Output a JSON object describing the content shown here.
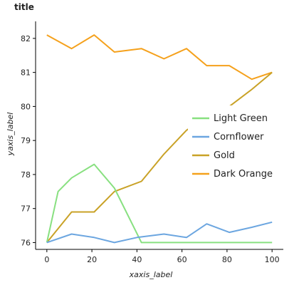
{
  "chart_data": {
    "type": "line",
    "title": "title",
    "xlabel": "xaxis_label",
    "ylabel": "yaxis_label",
    "xlim": [
      -5,
      105
    ],
    "ylim": [
      75.8,
      82.5
    ],
    "x_ticks": [
      0,
      20,
      40,
      60,
      80,
      100
    ],
    "y_ticks": [
      76,
      77,
      78,
      79,
      80,
      81,
      82
    ],
    "grid": false,
    "legend_position": "center-right",
    "series": [
      {
        "name": "Dark Orange",
        "color": "#F5A11C",
        "x": [
          0,
          11,
          21,
          30,
          42,
          52,
          62,
          71,
          81,
          91,
          100
        ],
        "y": [
          82.1,
          81.7,
          82.1,
          81.6,
          81.7,
          81.4,
          81.7,
          81.2,
          81.2,
          80.8,
          81.0
        ]
      },
      {
        "name": "Gold",
        "color": "#C9A227",
        "x": [
          0,
          11,
          21,
          30,
          42,
          52,
          62,
          71,
          81,
          91,
          100
        ],
        "y": [
          76.0,
          76.9,
          76.9,
          77.5,
          77.8,
          78.6,
          79.3,
          79.7,
          80.0,
          80.5,
          81.0
        ]
      },
      {
        "name": "Light Green",
        "color": "#88E080",
        "x": [
          0,
          5,
          11,
          21,
          30,
          42,
          52,
          62,
          71,
          81,
          91,
          100
        ],
        "y": [
          76.0,
          77.5,
          77.9,
          78.3,
          77.6,
          76.0,
          76.0,
          76.0,
          76.0,
          76.0,
          76.0,
          76.0
        ]
      },
      {
        "name": "Cornflower",
        "color": "#6CA6E0",
        "x": [
          0,
          11,
          21,
          30,
          40,
          52,
          62,
          71,
          81,
          91,
          100
        ],
        "y": [
          76.0,
          76.25,
          76.15,
          76.0,
          76.15,
          76.25,
          76.15,
          76.55,
          76.3,
          76.45,
          76.6
        ]
      }
    ],
    "legend": [
      "Light Green",
      "Cornflower",
      "Gold",
      "Dark Orange"
    ]
  }
}
